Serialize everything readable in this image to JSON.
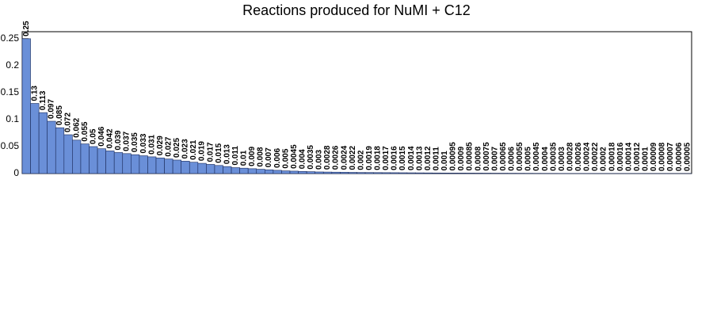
{
  "chart_data": {
    "type": "bar",
    "title": "Reactions produced for NuMI + C12",
    "categories": [
      null,
      null,
      null,
      null,
      null,
      null,
      null,
      null,
      null,
      null,
      null,
      null,
      null,
      null,
      null,
      null,
      null,
      null,
      null,
      null,
      null,
      null,
      null,
      null,
      null,
      null,
      null,
      null,
      null,
      null,
      null,
      null,
      null,
      null,
      null,
      null,
      null,
      null,
      null,
      null,
      null,
      null,
      null,
      null,
      null,
      null,
      null,
      null,
      null,
      null,
      null,
      null,
      null,
      null,
      null,
      null,
      null,
      null,
      null,
      null,
      null,
      null,
      null,
      null,
      null,
      null,
      null,
      null,
      null,
      null,
      null,
      null,
      null,
      null,
      null,
      null,
      null,
      null,
      null,
      null
    ],
    "values": [
      0.25,
      0.13,
      0.113,
      0.097,
      0.085,
      0.072,
      0.062,
      0.055,
      0.05,
      0.046,
      0.042,
      0.039,
      0.037,
      0.035,
      0.033,
      0.031,
      0.029,
      0.027,
      0.025,
      0.023,
      0.021,
      0.019,
      0.017,
      0.015,
      0.013,
      0.011,
      0.01,
      0.009,
      0.008,
      0.007,
      0.006,
      0.005,
      0.0045,
      0.004,
      0.0035,
      0.003,
      0.0028,
      0.0026,
      0.0024,
      0.0022,
      0.002,
      0.0019,
      0.0018,
      0.0017,
      0.0016,
      0.0015,
      0.0014,
      0.0013,
      0.0012,
      0.0011,
      0.001,
      0.00095,
      0.0009,
      0.00085,
      0.0008,
      0.00075,
      0.0007,
      0.00065,
      0.0006,
      0.00055,
      0.0005,
      0.00045,
      0.0004,
      0.00035,
      0.0003,
      0.00028,
      0.00026,
      0.00024,
      0.00022,
      0.0002,
      0.00018,
      0.00016,
      0.00014,
      0.00012,
      0.0001,
      9e-05,
      8e-05,
      7e-05,
      6e-05,
      5e-05
    ],
    "color": "#6a8fd8",
    "ylim": [
      0,
      0.263
    ],
    "yticks": [
      0,
      0.05,
      0.1,
      0.15,
      0.2,
      0.25
    ]
  }
}
